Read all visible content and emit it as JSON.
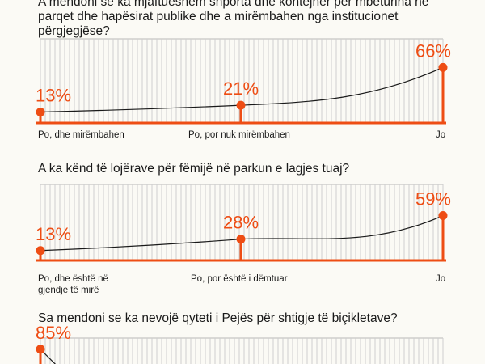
{
  "accent": "#ee4d14",
  "chart_data": [
    {
      "type": "line",
      "title": "A mendoni se ka mjaftueshëm shporta dhe kontejner për mbeturina në parqet dhe hapësirat publike dhe a mirëmbahen nga institucionet përgjegjëse?",
      "categories": [
        "Po, dhe mirëmbahen",
        "Po, por nuk mirëmbahen",
        "Jo"
      ],
      "values": [
        13,
        21,
        66
      ],
      "labels": [
        "13%",
        "21%",
        "66%"
      ],
      "ylim": [
        0,
        100
      ]
    },
    {
      "type": "line",
      "title": "A ka kënd të lojërave për fëmijë në parkun e lagjes tuaj?",
      "categories": [
        "Po, dhe është në gjendje të mirë",
        "Po, por është i dëmtuar",
        "Jo"
      ],
      "values": [
        13,
        28,
        59
      ],
      "labels": [
        "13%",
        "28%",
        "59%"
      ],
      "ylim": [
        0,
        100
      ]
    },
    {
      "type": "line",
      "title": "Sa mendoni se ka nevojë qyteti i Pejës për shtigje të biçikletave?",
      "categories": [],
      "values": [
        85
      ],
      "labels": [
        "85%"
      ],
      "ylim": [
        0,
        100
      ]
    }
  ]
}
